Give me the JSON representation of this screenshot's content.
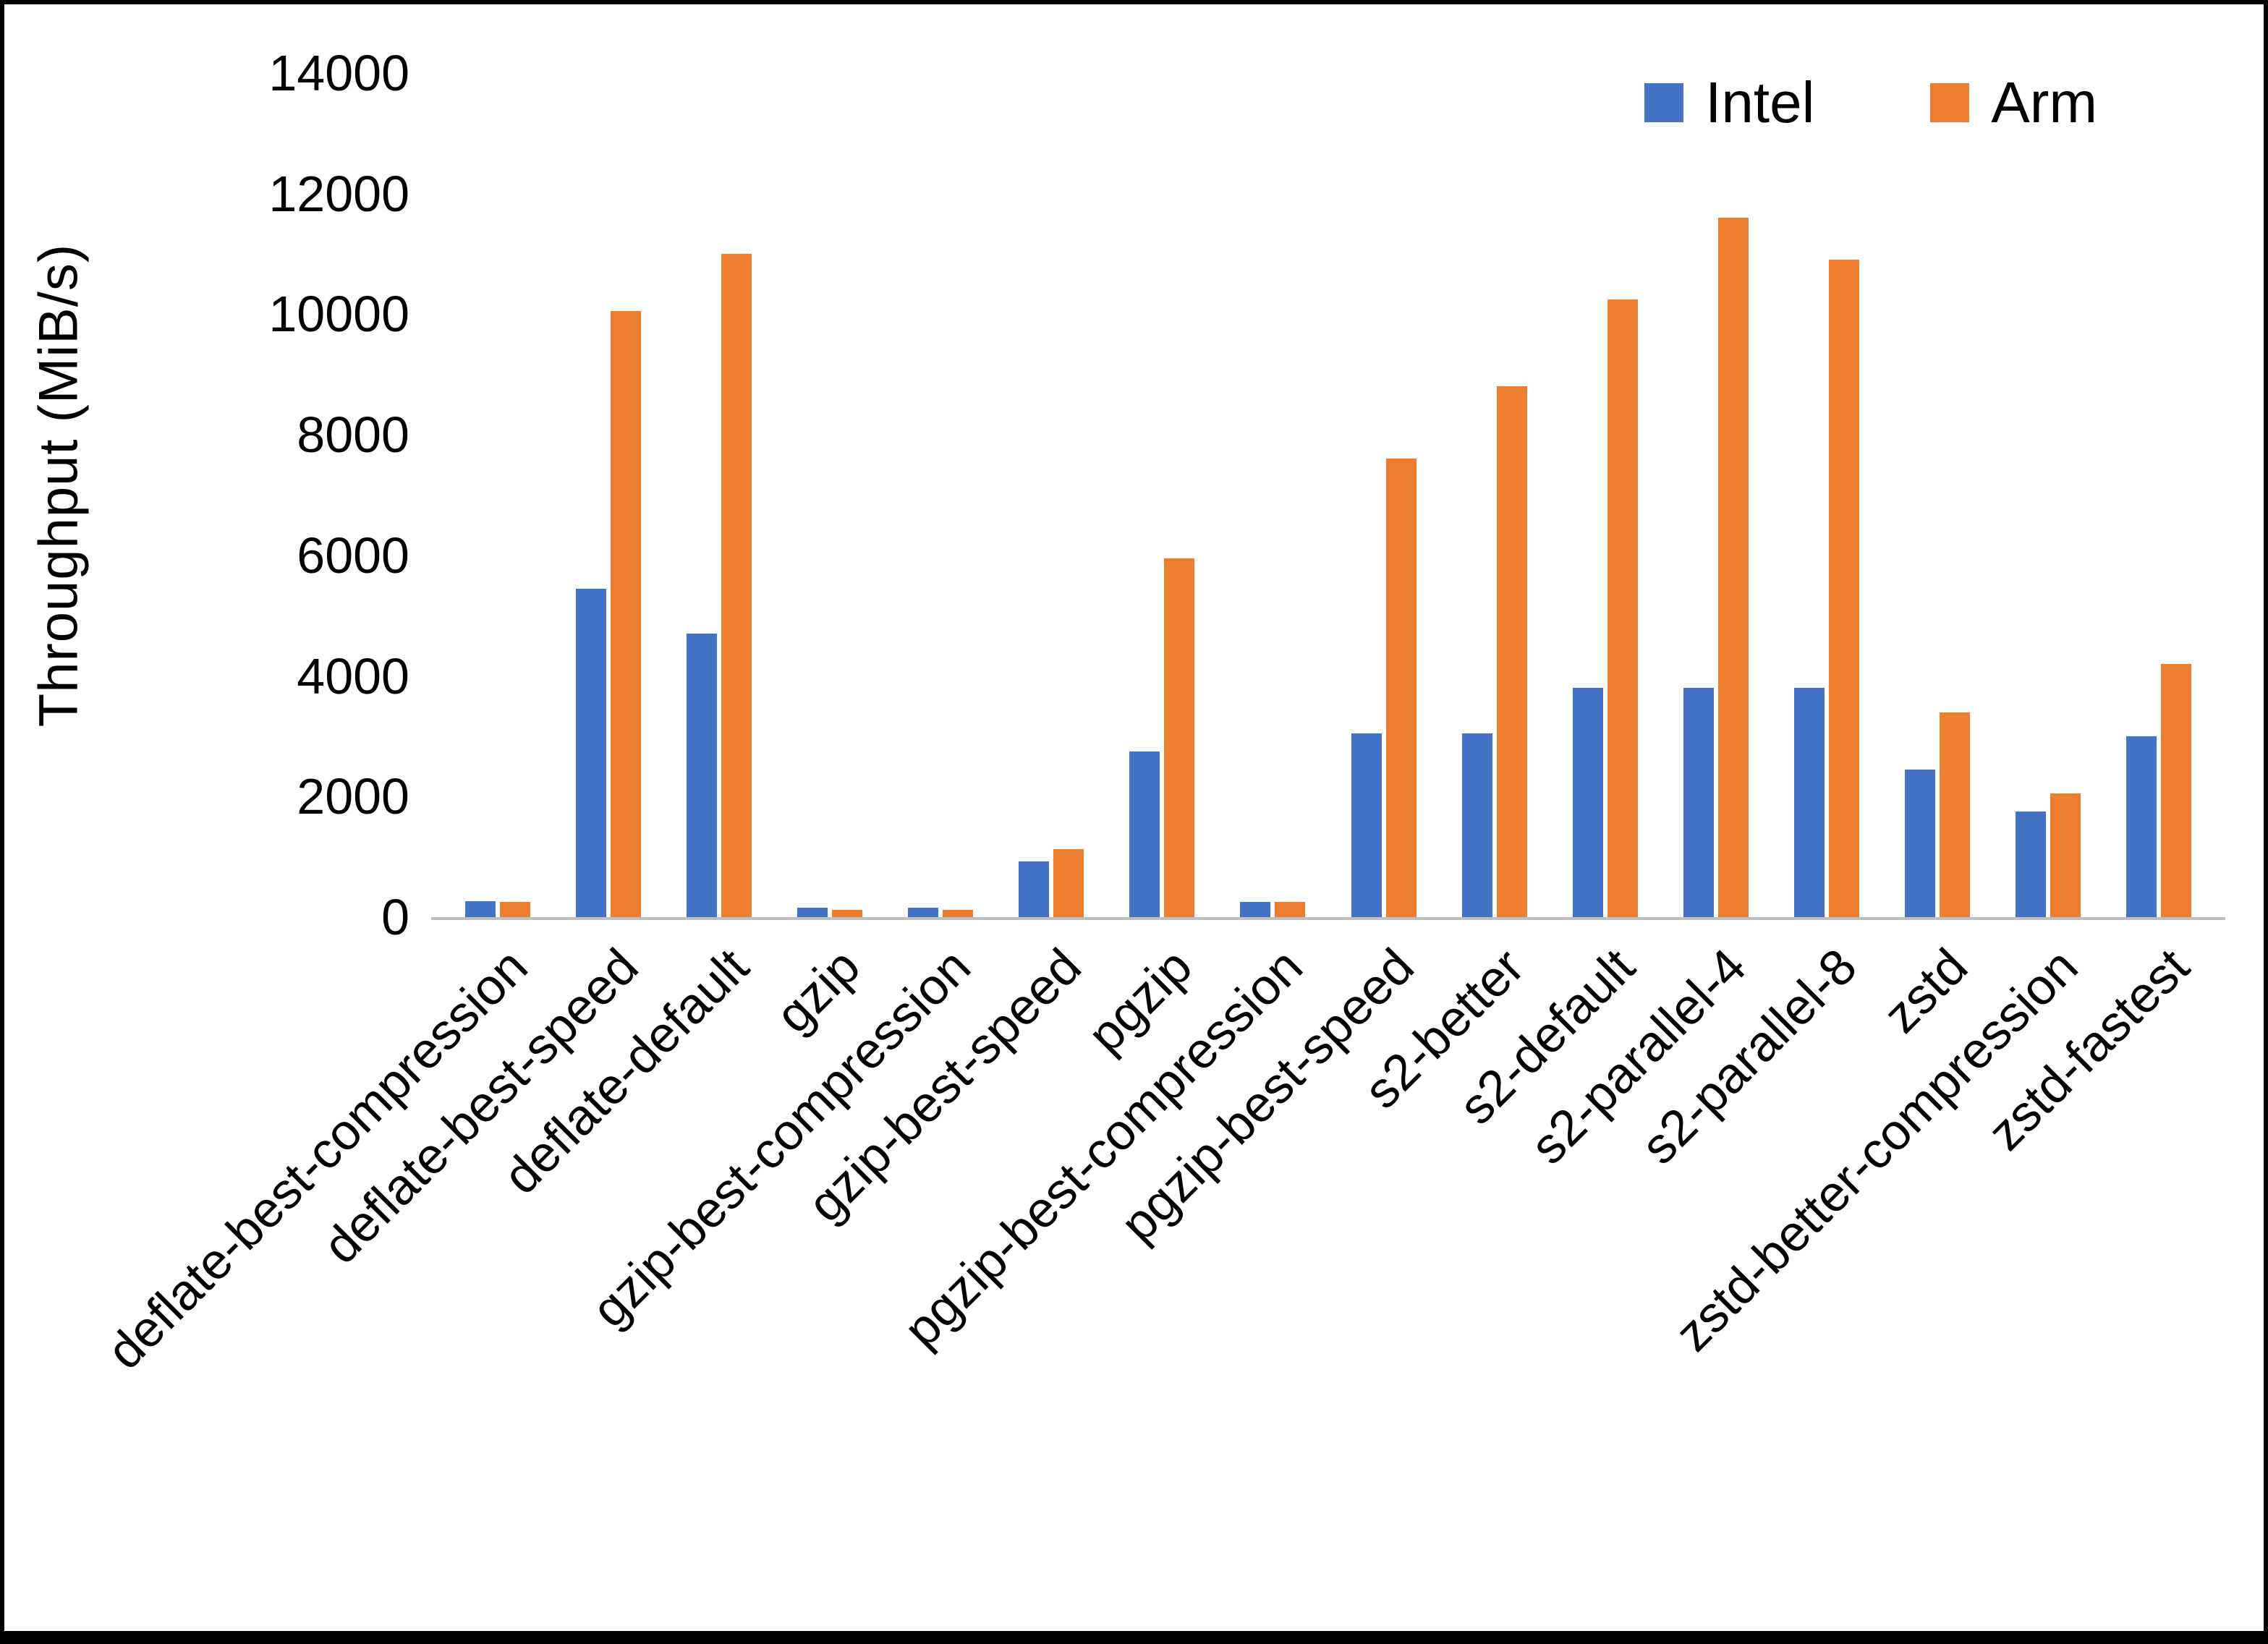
{
  "chart_data": {
    "type": "bar",
    "title": "",
    "xlabel": "",
    "ylabel": "Throughput (MiB/s)",
    "ylim": [
      0,
      14000
    ],
    "yticks": [
      0,
      2000,
      4000,
      6000,
      8000,
      10000,
      12000,
      14000
    ],
    "grid": false,
    "legend_position": "top-right",
    "background_color": "#ffffff",
    "axis_line_color": "#bfbfbf",
    "categories": [
      "deflate-best-compression",
      "deflate-best-speed",
      "deflate-default",
      "gzip",
      "gzip-best-compression",
      "gzip-best-speed",
      "pgzip",
      "pgzip-best-compression",
      "pgzip-best-speed",
      "s2-better",
      "s2-default",
      "s2-parallel-4",
      "s2-parallel-8",
      "zstd",
      "zstd-better-compression",
      "zstd-fastest"
    ],
    "series": [
      {
        "name": "Intel",
        "color": "#4472C4",
        "values": [
          260,
          5450,
          4700,
          150,
          150,
          920,
          2750,
          250,
          3050,
          3050,
          3800,
          3800,
          3800,
          2450,
          1750,
          3000
        ]
      },
      {
        "name": "Arm",
        "color": "#ED7D31",
        "values": [
          250,
          10050,
          11000,
          120,
          120,
          1130,
          5950,
          250,
          7600,
          8800,
          10250,
          11600,
          10900,
          3400,
          2050,
          4200
        ]
      }
    ]
  }
}
